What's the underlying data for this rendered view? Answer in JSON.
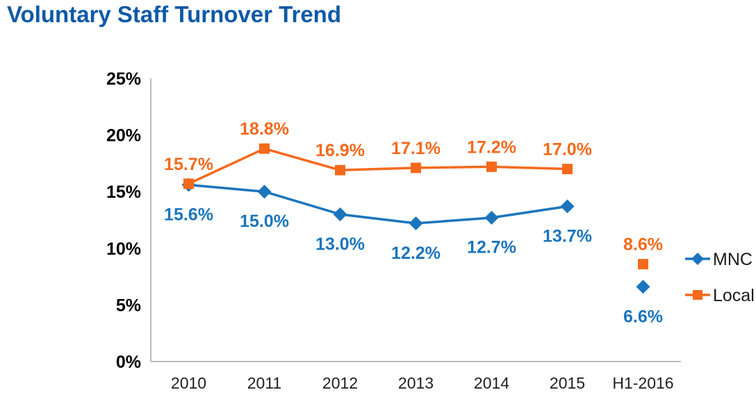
{
  "header": {
    "title": "Voluntary Staff Turnover Trend"
  },
  "colors": {
    "title_blue": "#0E59A7",
    "mnc_blue": "#1B75BD",
    "local_orange": "#F4691C",
    "axis_gray": "#A6A6A6",
    "axis_label": "#000000",
    "x_label": "#1F1F1F",
    "legend_text": "#1A1A1A",
    "background": "#FFFFFF"
  },
  "chart_data": {
    "type": "line",
    "title": "Voluntary Staff Turnover Trend",
    "xlabel": "",
    "ylabel": "",
    "categories": [
      "2010",
      "2011",
      "2012",
      "2013",
      "2014",
      "2015",
      "H1-2016"
    ],
    "series": [
      {
        "name": "MNC",
        "marker": "diamond",
        "color_key": "mnc_blue",
        "values": [
          15.6,
          15.0,
          13.0,
          12.2,
          12.7,
          13.7,
          6.6
        ],
        "labels": [
          "15.6%",
          "15.0%",
          "13.0%",
          "12.2%",
          "12.7%",
          "13.7%",
          "6.6%"
        ],
        "label_position": "below",
        "line_end_index": 5
      },
      {
        "name": "Local",
        "marker": "square",
        "color_key": "local_orange",
        "values": [
          15.7,
          18.8,
          16.9,
          17.1,
          17.2,
          17.0,
          8.6
        ],
        "labels": [
          "15.7%",
          "18.8%",
          "16.9%",
          "17.1%",
          "17.2%",
          "17.0%",
          "8.6%"
        ],
        "label_position": "above",
        "line_end_index": 5
      }
    ],
    "ylim": [
      0,
      25
    ],
    "ytick_step": 5,
    "ytick_labels": [
      "0%",
      "5%",
      "10%",
      "15%",
      "20%",
      "25%"
    ],
    "grid": false,
    "legend_position": "right",
    "legend": [
      "MNC",
      "Local"
    ]
  }
}
